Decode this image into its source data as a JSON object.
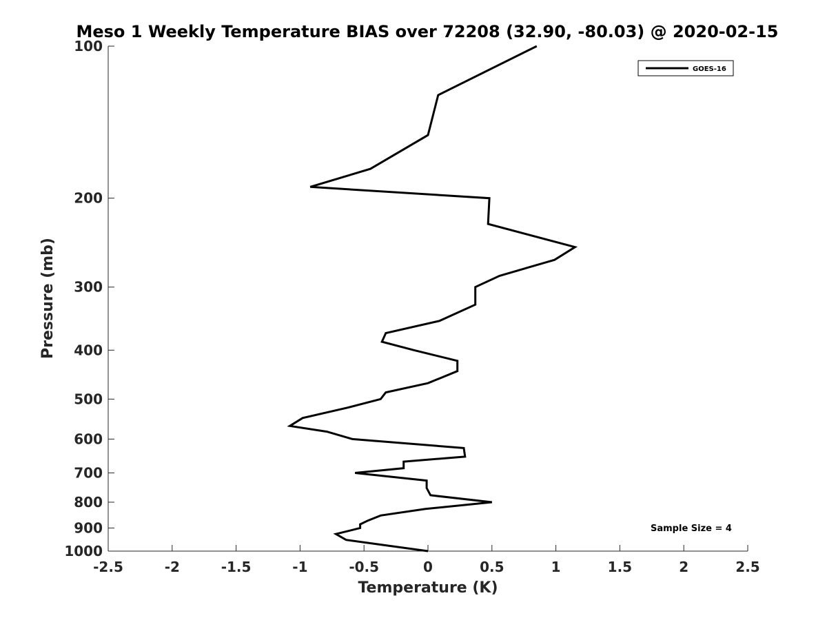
{
  "chart_data": {
    "type": "line",
    "title": "Meso 1 Weekly Temperature BIAS over 72208 (32.90, -80.03) @ 2020-02-15",
    "xlabel": "Temperature (K)",
    "ylabel": "Pressure (mb)",
    "xlim": [
      -2.5,
      2.5
    ],
    "ylim": [
      1000,
      100
    ],
    "y_scale": "log",
    "x_ticks": [
      "-2.5",
      "-2",
      "-1.5",
      "-1",
      "-0.5",
      "0",
      "0.5",
      "1",
      "1.5",
      "2",
      "2.5"
    ],
    "y_ticks": [
      "100",
      "200",
      "300",
      "400",
      "500",
      "600",
      "700",
      "800",
      "900",
      "1000"
    ],
    "grid": false,
    "legend": {
      "position": "top-right",
      "entries": [
        "GOES-16"
      ]
    },
    "annotation": "Sample Size = 4",
    "series": [
      {
        "name": "GOES-16",
        "color": "#000000",
        "points": [
          [
            0.85,
            100
          ],
          [
            0.08,
            125
          ],
          [
            0.0,
            150
          ],
          [
            -0.45,
            175
          ],
          [
            -0.92,
            190
          ],
          [
            0.48,
            200
          ],
          [
            0.47,
            225
          ],
          [
            1.15,
            250
          ],
          [
            0.99,
            265
          ],
          [
            0.56,
            285
          ],
          [
            0.37,
            300
          ],
          [
            0.37,
            325
          ],
          [
            0.09,
            350
          ],
          [
            -0.33,
            370
          ],
          [
            -0.36,
            385
          ],
          [
            -0.11,
            400
          ],
          [
            0.23,
            420
          ],
          [
            0.23,
            440
          ],
          [
            0.0,
            465
          ],
          [
            -0.33,
            485
          ],
          [
            -0.37,
            500
          ],
          [
            -0.63,
            520
          ],
          [
            -0.98,
            545
          ],
          [
            -1.08,
            565
          ],
          [
            -0.79,
            580
          ],
          [
            -0.59,
            600
          ],
          [
            0.28,
            625
          ],
          [
            0.29,
            650
          ],
          [
            -0.19,
            665
          ],
          [
            -0.19,
            685
          ],
          [
            -0.57,
            700
          ],
          [
            -0.01,
            725
          ],
          [
            -0.01,
            750
          ],
          [
            0.02,
            775
          ],
          [
            0.5,
            800
          ],
          [
            -0.02,
            825
          ],
          [
            -0.37,
            850
          ],
          [
            -0.47,
            870
          ],
          [
            -0.53,
            885
          ],
          [
            -0.53,
            900
          ],
          [
            -0.72,
            925
          ],
          [
            -0.64,
            950
          ],
          [
            -0.32,
            975
          ],
          [
            0.0,
            1000
          ]
        ]
      }
    ]
  }
}
